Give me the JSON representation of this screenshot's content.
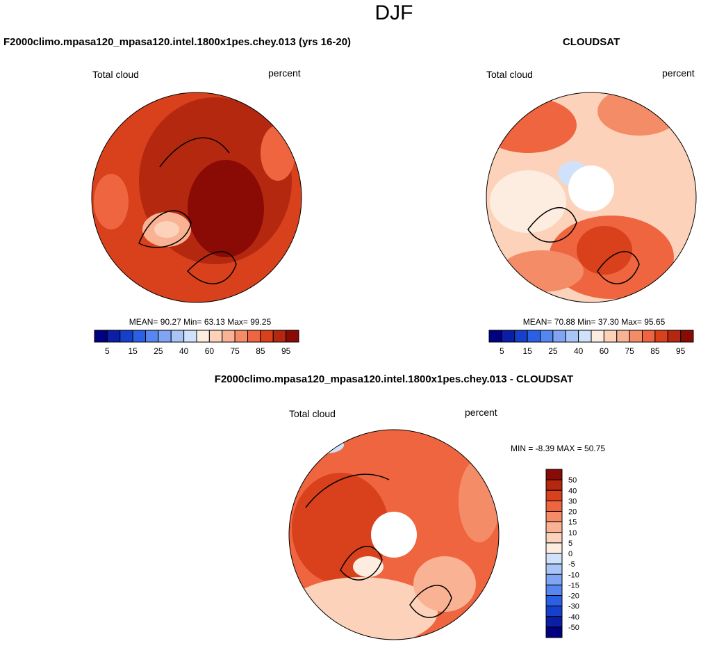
{
  "header": {
    "title": "DJF"
  },
  "panels": [
    {
      "title": "F2000climo.mpasa120_mpasa120.intel.1800x1pes.chey.013 (yrs 16-20)",
      "variable": "Total cloud",
      "units": "percent",
      "stats": [
        {
          "label": "MEAN=",
          "value": "90.27"
        },
        {
          "label": "Min=",
          "value": "63.13"
        },
        {
          "label": "Max=",
          "value": "99.25"
        }
      ]
    },
    {
      "title": "CLOUDSAT",
      "variable": "Total cloud",
      "units": "percent",
      "stats": [
        {
          "label": "MEAN=",
          "value": "70.88"
        },
        {
          "label": "Min=",
          "value": "37.30"
        },
        {
          "label": "Max=",
          "value": "95.65"
        }
      ]
    },
    {
      "title": "F2000climo.mpasa120_mpasa120.intel.1800x1pes.chey.013 - CLOUDSAT",
      "variable": "Total cloud",
      "units": "percent",
      "stats": [
        {
          "label": "MIN =",
          "value": "-8.39"
        },
        {
          "label": "MAX =",
          "value": "50.75"
        }
      ]
    }
  ],
  "colorbar": {
    "colors": [
      "#000080",
      "#0b1fa6",
      "#1640cc",
      "#2b5fe6",
      "#5686ef",
      "#80a5f3",
      "#a9c5f8",
      "#d0e1fb",
      "#fdede0",
      "#fcd3ba",
      "#f9b293",
      "#f58c68",
      "#ee6540",
      "#d8411b",
      "#b42810",
      "#8a0a05"
    ],
    "labels": [
      "5",
      "15",
      "25",
      "40",
      "60",
      "75",
      "85",
      "95"
    ],
    "diff_labels": [
      "50",
      "40",
      "30",
      "20",
      "15",
      "10",
      "5",
      "0",
      "-5",
      "-10",
      "-15",
      "-20",
      "-30",
      "-40",
      "-50"
    ]
  }
}
